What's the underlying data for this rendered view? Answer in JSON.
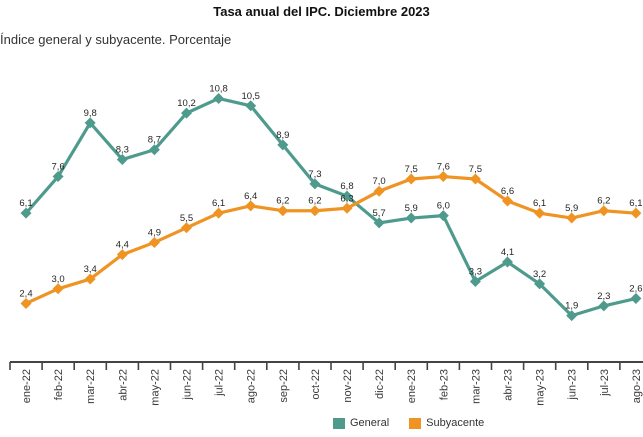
{
  "header": {
    "title": "Tasa anual del IPC. Diciembre 2023",
    "subtitle": "Índice general y subyacente. Porcentaje"
  },
  "colors": {
    "general": "#4E9B8E",
    "subyacente": "#EF9423",
    "axis": "#444444",
    "data_label": "#262626",
    "tick_label": "#3A3A3A"
  },
  "legend": {
    "general": "General",
    "subyacente": "Subyacente"
  },
  "chart_data": {
    "type": "line",
    "title": "Tasa anual del IPC. Diciembre 2023",
    "subtitle": "Índice general y subyacente. Porcentaje",
    "unit": "percent",
    "decimal_separator": ",",
    "categories": [
      "ene-22",
      "feb-22",
      "mar-22",
      "abr-22",
      "may-22",
      "jun-22",
      "jul-22",
      "ago-22",
      "sep-22",
      "oct-22",
      "nov-22",
      "dic-22",
      "ene-23",
      "feb-23",
      "mar-23",
      "abr-23",
      "may-23",
      "jun-23",
      "jul-23",
      "ago-23"
    ],
    "series": [
      {
        "name": "General",
        "color": "#4E9B8E",
        "values": [
          6.1,
          7.6,
          9.8,
          8.3,
          8.7,
          10.2,
          10.8,
          10.5,
          8.9,
          7.3,
          6.8,
          5.7,
          5.9,
          6.0,
          3.3,
          4.1,
          3.2,
          1.9,
          2.3,
          2.6
        ]
      },
      {
        "name": "Subyacente",
        "color": "#EF9423",
        "values": [
          2.4,
          3.0,
          3.4,
          4.4,
          4.9,
          5.5,
          6.1,
          6.4,
          6.2,
          6.2,
          6.3,
          7.0,
          7.5,
          7.6,
          7.5,
          6.6,
          6.1,
          5.9,
          6.2,
          6.1
        ]
      }
    ],
    "ylim": [
      0,
      11.8
    ],
    "grid": false,
    "legend_position": "bottom",
    "marker": "diamond",
    "data_labels": true
  }
}
